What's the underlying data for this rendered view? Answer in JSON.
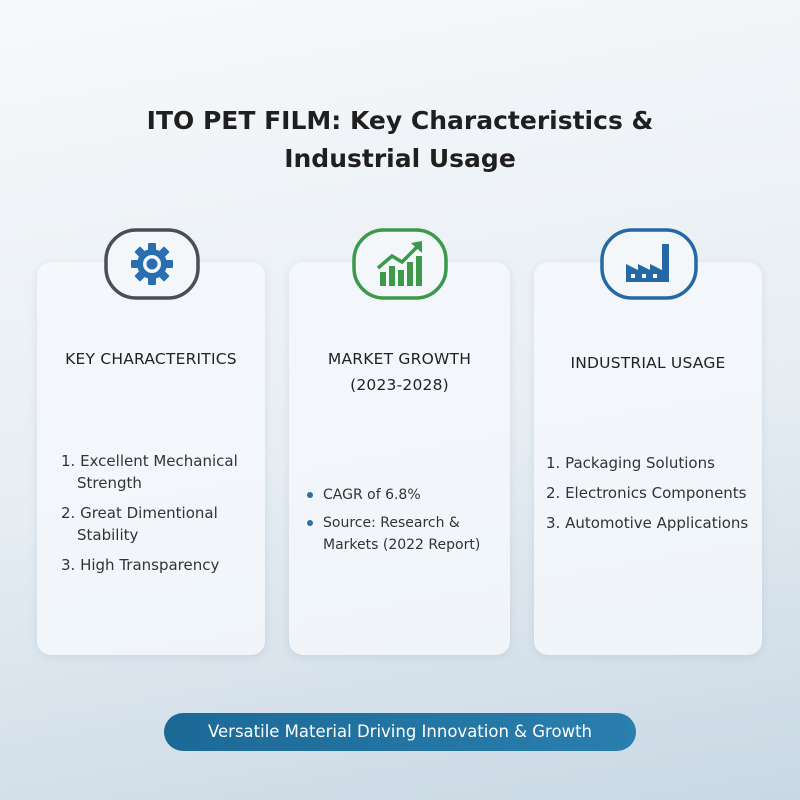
{
  "title": {
    "lines": [
      "ITO PET FILM: Key Characteristics &",
      "Industrial Usage"
    ]
  },
  "cards": [
    {
      "heading": [
        "KEY CHARACTERITICS"
      ],
      "items": [
        "1. Excellent Mechanical Strength",
        "2. Great Dimentional Stability",
        "3. High Transparency"
      ]
    },
    {
      "heading": [
        "MARKET GROWTH",
        "(2023-2028)"
      ],
      "items": [
        "CAGR of 6.8%",
        "Source: Research & Markets (2022 Report)"
      ]
    },
    {
      "heading": [
        "INDUSTRIAL USAGE"
      ],
      "items": [
        "1. Packaging Solutions",
        "2. Electronics Components",
        "3. Automotive Applications"
      ]
    }
  ],
  "footer": "Versatile Material Driving Innovation & Growth"
}
